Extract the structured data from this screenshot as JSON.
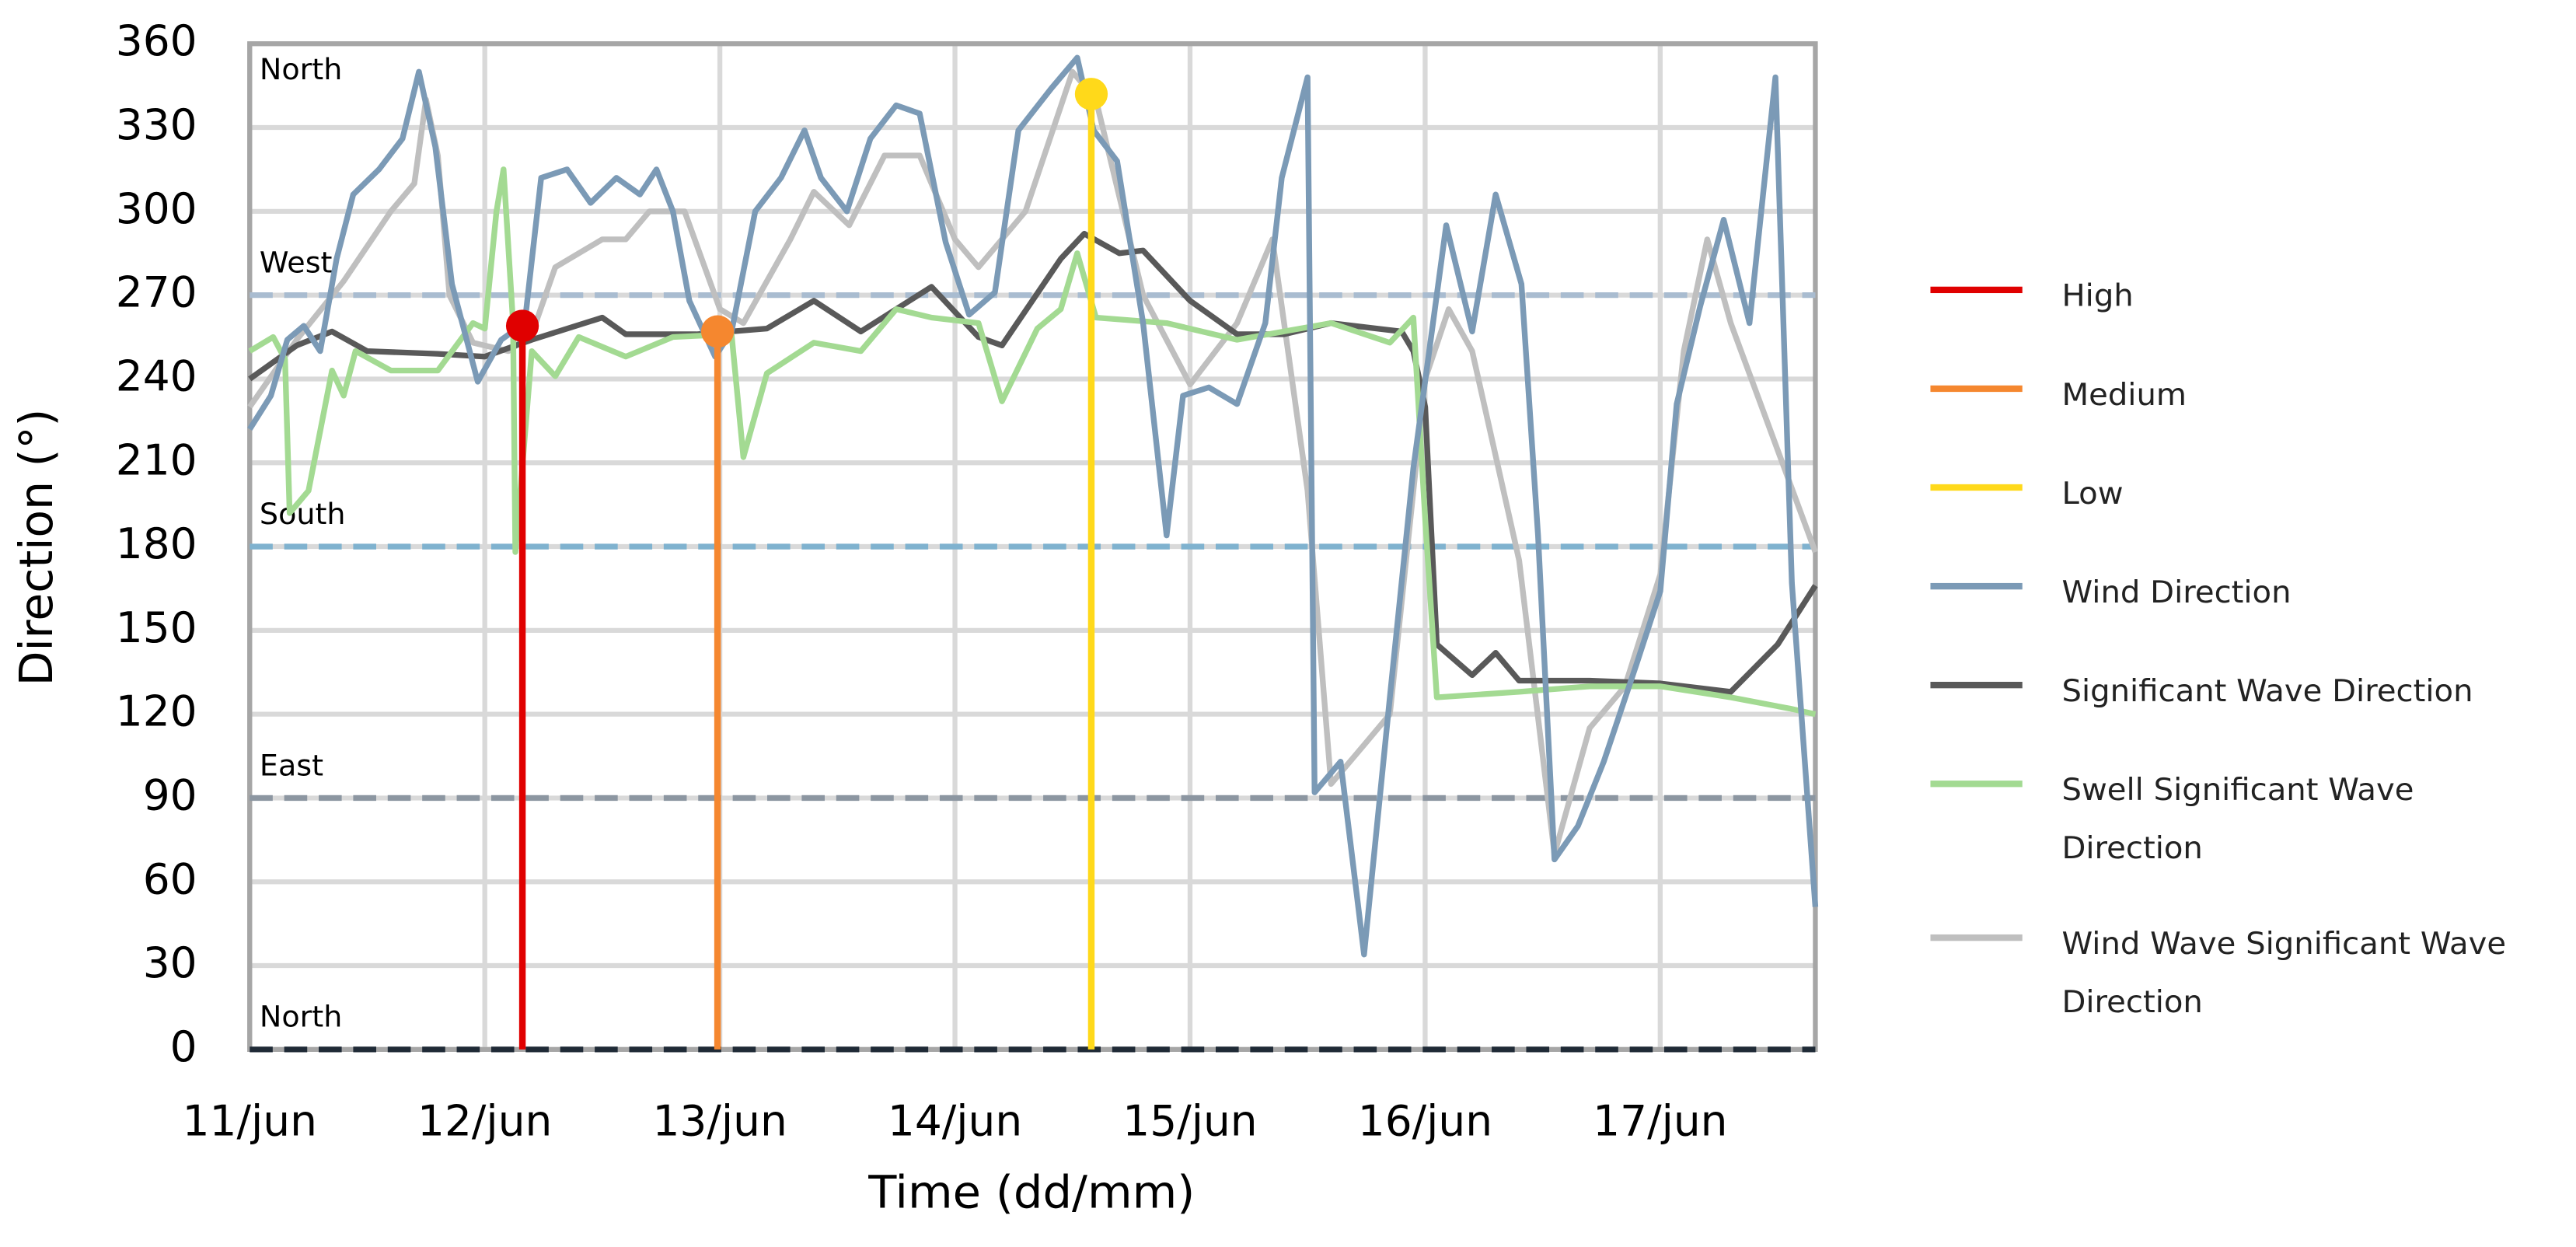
{
  "chart_data": {
    "type": "line",
    "x_label": "Time (dd/mm)",
    "y_label": "Direction (°)",
    "xlim": [
      0,
      6.66
    ],
    "xticks": [
      {
        "value": 0,
        "label": "11/jun"
      },
      {
        "value": 1,
        "label": "12/jun"
      },
      {
        "value": 2,
        "label": "13/jun"
      },
      {
        "value": 3,
        "label": "14/jun"
      },
      {
        "value": 4,
        "label": "15/jun"
      },
      {
        "value": 5,
        "label": "16/jun"
      },
      {
        "value": 6,
        "label": "17/jun"
      }
    ],
    "ylim": [
      0,
      360
    ],
    "yticks": [
      0,
      30,
      60,
      90,
      120,
      150,
      180,
      210,
      240,
      270,
      300,
      330,
      360
    ],
    "grid": true,
    "legend": "right",
    "reference_lines": [
      {
        "value": 270,
        "label": "West",
        "color": "#a9bcd0"
      },
      {
        "value": 180,
        "label": "South",
        "color": "#7fb2cf"
      },
      {
        "value": 90,
        "label": "East",
        "color": "#8c96a1"
      },
      {
        "value": 0,
        "label": "North",
        "color": "#1f2a36"
      }
    ],
    "annotations": [
      {
        "text": "North",
        "y": 360
      }
    ],
    "series": [
      {
        "name": "High",
        "color": "#e00000",
        "style": "stem",
        "x": [
          1.16
        ],
        "values": [
          259
        ]
      },
      {
        "name": "Medium",
        "color": "#f5872f",
        "style": "stem",
        "x": [
          1.99
        ],
        "values": [
          257
        ]
      },
      {
        "name": "Low",
        "color": "#ffd91a",
        "style": "stem",
        "x": [
          3.58
        ],
        "values": [
          342
        ]
      },
      {
        "name": "Wind Direction",
        "color": "#7b9ab6",
        "style": "line",
        "x": [
          0,
          0.09,
          0.16,
          0.23,
          0.3,
          0.37,
          0.44,
          0.55,
          0.65,
          0.72,
          0.79,
          0.86,
          0.97,
          1.07,
          1.17,
          1.24,
          1.35,
          1.45,
          1.56,
          1.66,
          1.73,
          1.8,
          1.87,
          1.98,
          2.05,
          2.15,
          2.26,
          2.36,
          2.43,
          2.54,
          2.64,
          2.75,
          2.85,
          2.96,
          3.06,
          3.17,
          3.27,
          3.41,
          3.52,
          3.59,
          3.69,
          3.8,
          3.9,
          3.97,
          4.08,
          4.2,
          4.32,
          4.39,
          4.5,
          4.53,
          4.64,
          4.74,
          4.85,
          4.95,
          5.09,
          5.2,
          5.3,
          5.41,
          5.48,
          5.55,
          5.65,
          5.76,
          5.9,
          6.0,
          6.07,
          6.17,
          6.27,
          6.38,
          6.49,
          6.56,
          6.66
        ],
        "values": [
          222,
          234,
          254,
          259,
          250,
          283,
          306,
          315,
          326,
          350,
          323,
          274,
          239,
          254,
          260,
          312,
          315,
          303,
          312,
          306,
          315,
          300,
          268,
          248,
          257,
          300,
          312,
          329,
          312,
          300,
          326,
          338,
          335,
          289,
          263,
          271,
          329,
          344,
          355,
          329,
          318,
          260,
          184,
          234,
          237,
          231,
          260,
          312,
          348,
          92,
          103,
          34,
          126,
          208,
          295,
          257,
          306,
          274,
          184,
          68,
          80,
          103,
          138,
          164,
          231,
          266,
          297,
          260,
          348,
          167,
          51
        ]
      },
      {
        "name": "Significant Wave Direction",
        "color": "#595959",
        "style": "line",
        "x": [
          0,
          0.2,
          0.35,
          0.5,
          0.8,
          1.0,
          1.2,
          1.5,
          1.6,
          1.9,
          2.2,
          2.4,
          2.6,
          2.9,
          3.1,
          3.2,
          3.45,
          3.55,
          3.7,
          3.8,
          4.0,
          4.2,
          4.4,
          4.6,
          4.9,
          4.95,
          5.0,
          5.05,
          5.2,
          5.3,
          5.4,
          5.7,
          6.0,
          6.3,
          6.5,
          6.66
        ],
        "values": [
          240,
          252,
          257,
          250,
          249,
          248,
          254,
          262,
          256,
          256,
          258,
          268,
          257,
          273,
          255,
          252,
          283,
          292,
          285,
          286,
          268,
          256,
          256,
          260,
          257,
          250,
          230,
          145,
          134,
          142,
          132,
          132,
          131,
          128,
          145,
          166
        ]
      },
      {
        "name": "Swell Significant Wave Direction",
        "color": "#a3da92",
        "style": "line",
        "x": [
          0,
          0.1,
          0.15,
          0.17,
          0.25,
          0.35,
          0.4,
          0.45,
          0.6,
          0.8,
          0.95,
          1.0,
          1.05,
          1.08,
          1.12,
          1.13,
          1.2,
          1.3,
          1.4,
          1.6,
          1.8,
          2.05,
          2.1,
          2.2,
          2.4,
          2.6,
          2.75,
          2.9,
          3.1,
          3.2,
          3.35,
          3.45,
          3.52,
          3.6,
          3.9,
          4.2,
          4.6,
          4.85,
          4.95,
          5.0,
          5.05,
          5.4,
          5.7,
          6.0,
          6.3,
          6.55,
          6.66
        ],
        "values": [
          250,
          255,
          247,
          192,
          200,
          243,
          234,
          250,
          243,
          243,
          260,
          258,
          300,
          315,
          260,
          178,
          250,
          241,
          255,
          248,
          255,
          256,
          212,
          242,
          253,
          250,
          265,
          262,
          260,
          232,
          258,
          265,
          285,
          262,
          260,
          254,
          260,
          253,
          262,
          190,
          126,
          128,
          130,
          130,
          126,
          122,
          120
        ]
      },
      {
        "name": "Wind Wave Significant Wave Direction",
        "color": "#bfbfbf",
        "style": "line",
        "x": [
          0,
          0.2,
          0.4,
          0.6,
          0.7,
          0.75,
          0.8,
          0.85,
          0.95,
          1.1,
          1.2,
          1.3,
          1.5,
          1.6,
          1.7,
          1.85,
          2.0,
          2.1,
          2.3,
          2.4,
          2.55,
          2.7,
          2.85,
          3.0,
          3.1,
          3.3,
          3.5,
          3.6,
          3.8,
          4.0,
          4.2,
          4.35,
          4.5,
          4.6,
          4.75,
          4.85,
          5.0,
          5.1,
          5.2,
          5.4,
          5.55,
          5.7,
          5.85,
          6.0,
          6.1,
          6.2,
          6.3,
          6.66
        ],
        "values": [
          230,
          254,
          275,
          300,
          310,
          340,
          320,
          270,
          253,
          250,
          256,
          280,
          290,
          290,
          300,
          300,
          265,
          260,
          290,
          307,
          295,
          320,
          320,
          290,
          280,
          300,
          350,
          340,
          270,
          238,
          260,
          290,
          200,
          95,
          110,
          120,
          240,
          265,
          250,
          175,
          70,
          115,
          130,
          170,
          250,
          290,
          260,
          178
        ]
      }
    ]
  }
}
